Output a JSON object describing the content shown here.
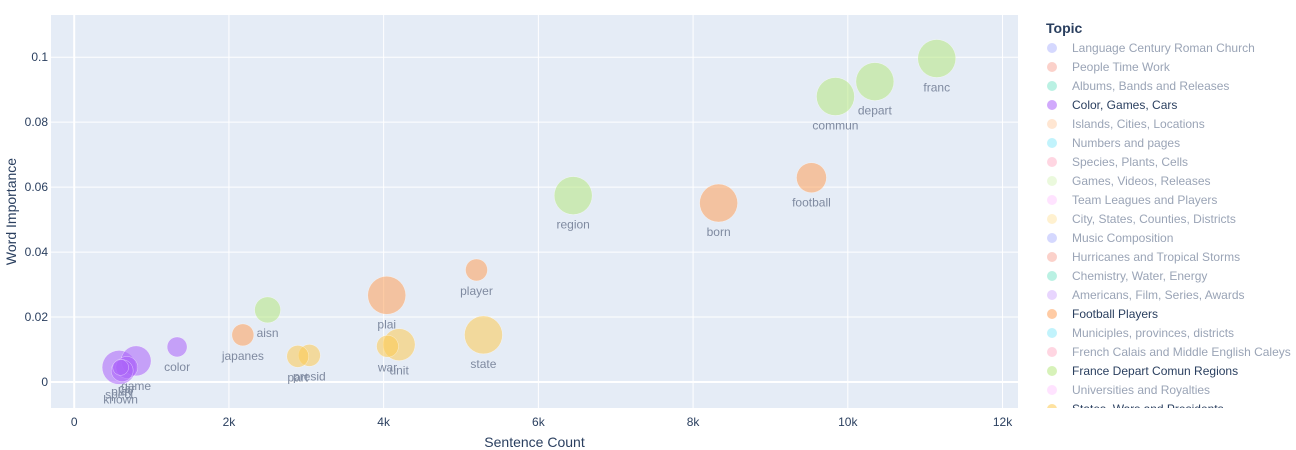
{
  "chart_data": {
    "type": "scatter",
    "xlabel": "Sentence Count",
    "ylabel": "Word Importance",
    "xlim": [
      -300,
      12200
    ],
    "ylim": [
      -0.008,
      0.113
    ],
    "x_ticks": [
      0,
      2000,
      4000,
      6000,
      8000,
      10000,
      12000
    ],
    "x_tick_labels": [
      "0",
      "2k",
      "4k",
      "6k",
      "8k",
      "10k",
      "12k"
    ],
    "y_ticks": [
      0,
      0.02,
      0.04,
      0.06,
      0.08,
      0.1
    ],
    "y_tick_labels": [
      "0",
      "0.02",
      "0.04",
      "0.06",
      "0.08",
      "0.1"
    ],
    "grid": true,
    "legend_title": "Topic",
    "legend_position": "right",
    "legend": [
      {
        "name": "Language Century Roman Church",
        "color": "#636efa",
        "active": false
      },
      {
        "name": "People Time Work",
        "color": "#ef553b",
        "active": false
      },
      {
        "name": "Albums, Bands and Releases",
        "color": "#00cc96",
        "active": false
      },
      {
        "name": "Color, Games, Cars",
        "color": "#ab63fa",
        "active": true
      },
      {
        "name": "Islands, Cities, Locations",
        "color": "#ffa15a",
        "active": false
      },
      {
        "name": "Numbers and pages",
        "color": "#19d3f3",
        "active": false
      },
      {
        "name": "Species, Plants, Cells",
        "color": "#ff6692",
        "active": false
      },
      {
        "name": "Games, Videos, Releases",
        "color": "#b6e880",
        "active": false
      },
      {
        "name": "Team Leagues and Players",
        "color": "#ff97ff",
        "active": false
      },
      {
        "name": "City, States, Counties, Districts",
        "color": "#fecb52",
        "active": false
      },
      {
        "name": "Music Composition",
        "color": "#636efa",
        "active": false
      },
      {
        "name": "Hurricanes and Tropical Storms",
        "color": "#ef553b",
        "active": false
      },
      {
        "name": "Chemistry, Water, Energy",
        "color": "#00cc96",
        "active": false
      },
      {
        "name": "Americans, Film, Series, Awards",
        "color": "#ab63fa",
        "active": false
      },
      {
        "name": "Football Players",
        "color": "#ffa15a",
        "active": true
      },
      {
        "name": "Municiples, provinces, districts",
        "color": "#19d3f3",
        "active": false
      },
      {
        "name": "French Calais and Middle English Caleys",
        "color": "#ff6692",
        "active": false
      },
      {
        "name": "France Depart Comun Regions",
        "color": "#b6e880",
        "active": true
      },
      {
        "name": "Universities and Royalties",
        "color": "#ff97ff",
        "active": false
      },
      {
        "name": "States, Wars and Presidents",
        "color": "#fecb52",
        "active": true
      }
    ],
    "points": [
      {
        "label": "franc",
        "x": 11150,
        "y": 0.0996,
        "size": 19,
        "color": "#b6e880",
        "label_pos": "below"
      },
      {
        "label": "depart",
        "x": 10350,
        "y": 0.0925,
        "size": 19,
        "color": "#b6e880",
        "label_pos": "below"
      },
      {
        "label": "commun",
        "x": 9840,
        "y": 0.0879,
        "size": 19,
        "color": "#b6e880",
        "label_pos": "below"
      },
      {
        "label": "region",
        "x": 6450,
        "y": 0.0574,
        "size": 19,
        "color": "#b6e880",
        "label_pos": "below"
      },
      {
        "label": "aisn",
        "x": 2500,
        "y": 0.0222,
        "size": 13,
        "color": "#b6e880",
        "label_pos": "below"
      },
      {
        "label": "football",
        "x": 9530,
        "y": 0.0629,
        "size": 15,
        "color": "#ffa15a",
        "label_pos": "below"
      },
      {
        "label": "born",
        "x": 8330,
        "y": 0.0551,
        "size": 19,
        "color": "#ffa15a",
        "label_pos": "below"
      },
      {
        "label": "player",
        "x": 5200,
        "y": 0.0345,
        "size": 11,
        "color": "#ffa15a",
        "label_pos": "below"
      },
      {
        "label": "plai",
        "x": 4040,
        "y": 0.0267,
        "size": 19,
        "color": "#ffa15a",
        "label_pos": "below"
      },
      {
        "label": "japanes",
        "x": 2180,
        "y": 0.0145,
        "size": 11,
        "color": "#ffa15a",
        "label_pos": "below"
      },
      {
        "label": "state",
        "x": 5290,
        "y": 0.0145,
        "size": 19,
        "color": "#fecb52",
        "label_pos": "below"
      },
      {
        "label": "unit",
        "x": 4200,
        "y": 0.0115,
        "size": 16,
        "color": "#fecb52",
        "label_pos": "below"
      },
      {
        "label": "war",
        "x": 4050,
        "y": 0.011,
        "size": 11,
        "color": "#fecb52",
        "label_pos": "below"
      },
      {
        "label": "presid",
        "x": 3040,
        "y": 0.0082,
        "size": 11,
        "color": "#fecb52",
        "label_pos": "below"
      },
      {
        "label": "part",
        "x": 2890,
        "y": 0.0079,
        "size": 11,
        "color": "#fecb52",
        "label_pos": "below"
      },
      {
        "label": "color",
        "x": 1330,
        "y": 0.0108,
        "size": 10,
        "color": "#ab63fa",
        "label_pos": "below"
      },
      {
        "label": "game",
        "x": 800,
        "y": 0.0065,
        "size": 15,
        "color": "#ab63fa",
        "label_pos": "below"
      },
      {
        "label": "car",
        "x": 680,
        "y": 0.0045,
        "size": 11,
        "color": "#ab63fa",
        "label_pos": "below"
      },
      {
        "label": "speci",
        "x": 580,
        "y": 0.0045,
        "size": 17,
        "color": "#ab63fa",
        "label_pos": "below"
      },
      {
        "label": "play",
        "x": 620,
        "y": 0.0035,
        "size": 11,
        "color": "#ab63fa",
        "label_pos": "below"
      },
      {
        "label": "known",
        "x": 600,
        "y": 0.0045,
        "size": 8,
        "color": "#ab63fa",
        "label_pos": "below2"
      }
    ]
  }
}
